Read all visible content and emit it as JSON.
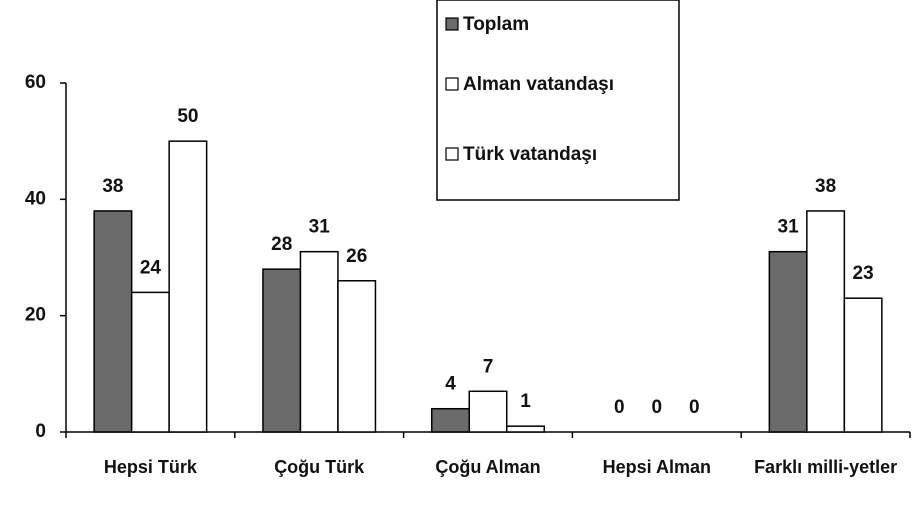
{
  "chart_data": {
    "type": "bar",
    "categories": [
      "Hepsi Türk",
      "Çoğu Türk",
      "Çoğu Alman",
      "Hepsi Alman",
      "Farklı milli-yetler"
    ],
    "series": [
      {
        "name": "Toplam",
        "color": "#6b6b6b",
        "values": [
          38,
          28,
          4,
          0,
          31
        ]
      },
      {
        "name": "Alman vatandaşı",
        "color": "#ffffff",
        "values": [
          24,
          31,
          7,
          0,
          38
        ]
      },
      {
        "name": "Türk vatandaşı",
        "color": "#ffffff",
        "values": [
          50,
          26,
          1,
          0,
          23
        ]
      }
    ],
    "ylim": [
      0,
      60
    ],
    "yticks": [
      0,
      20,
      40,
      60
    ],
    "grid": false
  }
}
